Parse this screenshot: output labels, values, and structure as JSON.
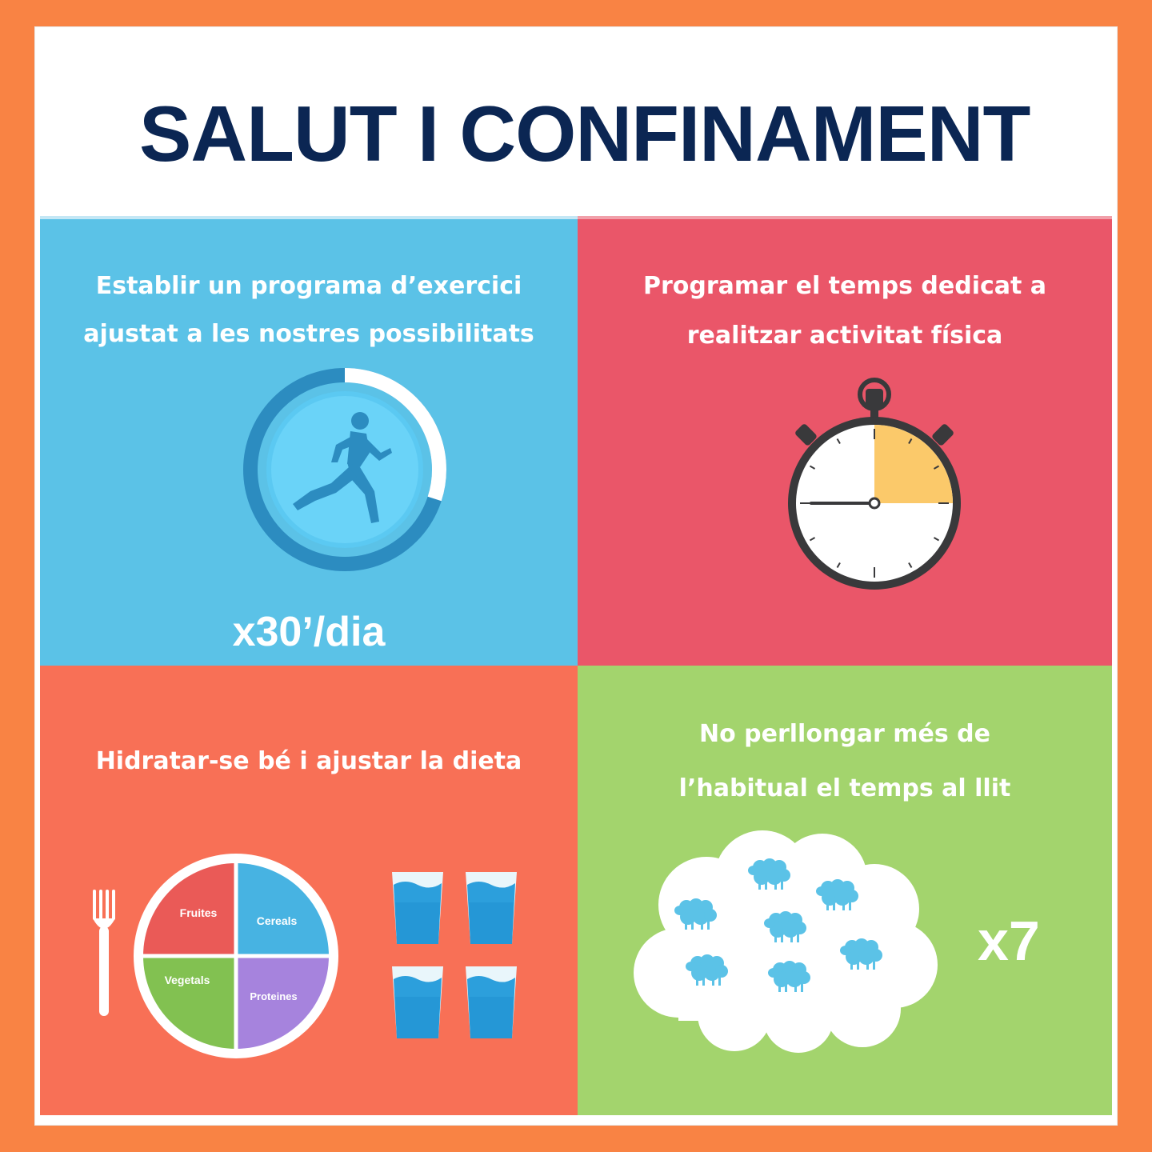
{
  "header": {
    "title": "SALUT I CONFINAMENT"
  },
  "panels": {
    "exercise": {
      "line1": "Establir un programa d’exercici",
      "line2": "ajustat a les nostres possibilitats",
      "icon": "runner-icon",
      "progress_ring_fraction": 0.3,
      "caption": "x30’/dia"
    },
    "schedule": {
      "line1": "Programar el temps dedicat a",
      "line2": "realitzar activitat física",
      "icon": "stopwatch-icon",
      "highlighted_fraction": 0.25
    },
    "diet": {
      "line1": "Hidratar-se bé i ajustar la dieta",
      "plate": {
        "fruits": "Fruites",
        "cereals": "Cereals",
        "vegetables": "Vegetals",
        "proteins": "Proteines"
      },
      "glass_count": 4
    },
    "sleep": {
      "line1": "No perllongar més de",
      "line2": "l’habitual el temps al llit",
      "icon": "sheep-cloud-icon",
      "sheep_count": 7,
      "caption": "x7"
    }
  },
  "colors": {
    "background": "#f98344",
    "title": "#0b2653",
    "exercise": "#5bc2e7",
    "schedule": "#ea5669",
    "diet": "#f87056",
    "sleep": "#a3d46d",
    "timer_fill": "#fbc96a",
    "plate_fruits": "#ea5a57",
    "plate_cereals": "#47b3e2",
    "plate_vegetables": "#82c151",
    "plate_proteins": "#a683dd"
  }
}
